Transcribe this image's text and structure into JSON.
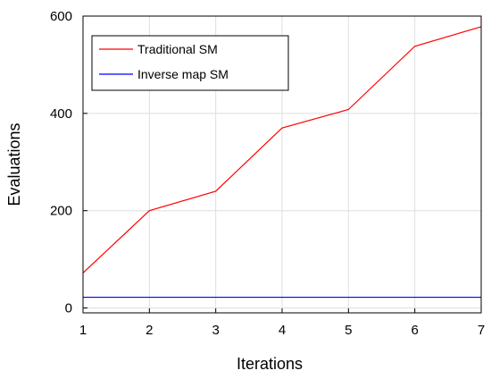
{
  "chart_data": {
    "type": "line",
    "xlabel": "Iterations",
    "ylabel": "Evaluations",
    "x": [
      1,
      2,
      3,
      4,
      5,
      6,
      7
    ],
    "xlim": [
      1,
      7
    ],
    "ylim": [
      -10,
      600
    ],
    "xticks": [
      "1",
      "2",
      "3",
      "4",
      "5",
      "6",
      "7"
    ],
    "yticks": [
      0,
      200,
      400,
      600
    ],
    "ytick_labels": [
      "0",
      "200",
      "400",
      "600"
    ],
    "grid": true,
    "legend_position": "top-left",
    "series": [
      {
        "name": "Traditional SM",
        "color": "#ff0000",
        "values": [
          72,
          200,
          240,
          370,
          408,
          538,
          578
        ]
      },
      {
        "name": "Inverse map SM",
        "color": "#0000ff",
        "values": [
          22,
          22,
          22,
          22,
          22,
          22,
          22
        ]
      }
    ]
  }
}
